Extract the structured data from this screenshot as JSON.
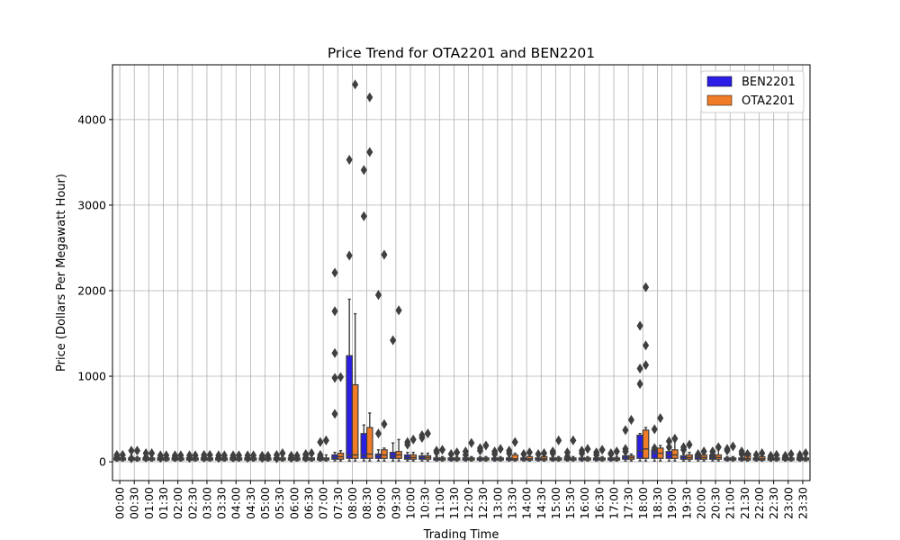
{
  "chart_data": {
    "type": "box",
    "title": "Price Trend for OTA2201 and BEN2201",
    "xlabel": "Trading Time",
    "ylabel": "Price (Dollars Per Megawatt Hour)",
    "ylim": [
      -220,
      4640
    ],
    "yticks": [
      0,
      1000,
      2000,
      3000,
      4000
    ],
    "grid": true,
    "legend_position": "top-right",
    "categories": [
      "00:00",
      "00:30",
      "01:00",
      "01:30",
      "02:00",
      "02:30",
      "03:00",
      "03:30",
      "04:00",
      "04:30",
      "05:00",
      "05:30",
      "06:00",
      "06:30",
      "07:00",
      "07:30",
      "08:00",
      "08:30",
      "09:00",
      "09:30",
      "10:00",
      "10:30",
      "11:00",
      "11:30",
      "12:00",
      "12:30",
      "13:00",
      "13:30",
      "14:00",
      "14:30",
      "15:00",
      "15:30",
      "16:00",
      "16:30",
      "17:00",
      "17:30",
      "18:00",
      "18:30",
      "19:00",
      "19:30",
      "20:00",
      "20:30",
      "21:00",
      "21:30",
      "22:00",
      "22:30",
      "23:00",
      "23:30"
    ],
    "series": [
      {
        "name": "BEN2201",
        "color": "#2a1ee6",
        "boxes": [
          [
            10,
            20,
            35,
            45,
            60
          ],
          [
            10,
            20,
            35,
            45,
            60
          ],
          [
            10,
            20,
            35,
            45,
            60
          ],
          [
            10,
            20,
            35,
            45,
            60
          ],
          [
            10,
            20,
            35,
            45,
            60
          ],
          [
            10,
            20,
            35,
            45,
            60
          ],
          [
            10,
            20,
            35,
            45,
            60
          ],
          [
            10,
            20,
            35,
            45,
            60
          ],
          [
            10,
            20,
            35,
            45,
            60
          ],
          [
            10,
            20,
            35,
            45,
            60
          ],
          [
            10,
            20,
            35,
            45,
            60
          ],
          [
            10,
            20,
            35,
            45,
            60
          ],
          [
            10,
            20,
            35,
            45,
            60
          ],
          [
            10,
            20,
            35,
            45,
            70
          ],
          [
            10,
            20,
            35,
            45,
            80
          ],
          [
            10,
            30,
            50,
            80,
            110
          ],
          [
            10,
            40,
            80,
            1240,
            1900
          ],
          [
            10,
            40,
            80,
            330,
            430
          ],
          [
            10,
            40,
            70,
            90,
            140
          ],
          [
            10,
            40,
            70,
            110,
            220
          ],
          [
            10,
            30,
            50,
            80,
            110
          ],
          [
            10,
            30,
            50,
            70,
            100
          ],
          [
            10,
            20,
            35,
            45,
            60
          ],
          [
            10,
            20,
            35,
            45,
            60
          ],
          [
            10,
            20,
            35,
            45,
            60
          ],
          [
            10,
            20,
            35,
            45,
            60
          ],
          [
            10,
            20,
            35,
            45,
            60
          ],
          [
            10,
            20,
            35,
            45,
            60
          ],
          [
            10,
            20,
            35,
            45,
            60
          ],
          [
            10,
            20,
            35,
            45,
            60
          ],
          [
            10,
            20,
            35,
            45,
            60
          ],
          [
            10,
            20,
            35,
            45,
            60
          ],
          [
            10,
            20,
            35,
            45,
            60
          ],
          [
            10,
            20,
            35,
            45,
            60
          ],
          [
            10,
            20,
            35,
            45,
            60
          ],
          [
            10,
            30,
            50,
            70,
            90
          ],
          [
            10,
            40,
            130,
            310,
            330
          ],
          [
            10,
            40,
            100,
            140,
            170
          ],
          [
            10,
            40,
            80,
            120,
            160
          ],
          [
            10,
            30,
            50,
            70,
            90
          ],
          [
            10,
            30,
            50,
            80,
            110
          ],
          [
            10,
            30,
            50,
            80,
            140
          ],
          [
            10,
            20,
            35,
            45,
            60
          ],
          [
            10,
            20,
            35,
            45,
            60
          ],
          [
            10,
            20,
            35,
            45,
            60
          ],
          [
            10,
            20,
            35,
            45,
            60
          ],
          [
            10,
            20,
            35,
            45,
            60
          ],
          [
            10,
            20,
            35,
            45,
            60
          ]
        ],
        "outliers": [
          [
            55,
            80
          ],
          [
            40,
            130
          ],
          [
            50,
            100
          ],
          [
            45,
            75
          ],
          [
            55,
            75
          ],
          [
            45,
            75
          ],
          [
            50,
            80
          ],
          [
            45,
            75
          ],
          [
            50,
            75
          ],
          [
            45,
            75
          ],
          [
            45,
            70
          ],
          [
            40,
            80
          ],
          [
            45,
            70
          ],
          [
            50,
            80,
            90
          ],
          [
            60,
            80,
            230
          ],
          [
            560,
            980,
            1760,
            1270,
            2210
          ],
          [
            3530,
            2410
          ],
          [
            3410,
            2870
          ],
          [
            1950,
            330
          ],
          [
            1420
          ],
          [
            200,
            230
          ],
          [
            280,
            310
          ],
          [
            110,
            130
          ],
          [
            90
          ],
          [
            120,
            80
          ],
          [
            160,
            130
          ],
          [
            120,
            90
          ],
          [
            130,
            100
          ],
          [
            90
          ],
          [
            90
          ],
          [
            100,
            120
          ],
          [
            110,
            60
          ],
          [
            100,
            130
          ],
          [
            110,
            80
          ],
          [
            90,
            100
          ],
          [
            370,
            120,
            150
          ],
          [
            910,
            1090,
            1590
          ],
          [
            380,
            160
          ],
          [
            170,
            240
          ],
          [
            140,
            170
          ],
          [
            90
          ],
          [
            120,
            80
          ],
          [
            130,
            150
          ],
          [
            90,
            120
          ],
          [
            80
          ],
          [
            60,
            70
          ],
          [
            70,
            60
          ],
          [
            60,
            80
          ]
        ]
      },
      {
        "name": "OTA2201",
        "color": "#f07c27",
        "boxes": [
          [
            10,
            20,
            35,
            45,
            60
          ],
          [
            10,
            20,
            35,
            45,
            60
          ],
          [
            10,
            20,
            35,
            45,
            60
          ],
          [
            10,
            20,
            35,
            45,
            60
          ],
          [
            10,
            20,
            35,
            45,
            60
          ],
          [
            10,
            20,
            35,
            45,
            60
          ],
          [
            10,
            20,
            35,
            45,
            60
          ],
          [
            10,
            20,
            35,
            45,
            60
          ],
          [
            10,
            20,
            35,
            45,
            60
          ],
          [
            10,
            20,
            35,
            45,
            60
          ],
          [
            10,
            20,
            35,
            45,
            60
          ],
          [
            10,
            20,
            35,
            45,
            60
          ],
          [
            10,
            20,
            35,
            45,
            60
          ],
          [
            10,
            20,
            35,
            45,
            70
          ],
          [
            10,
            20,
            35,
            45,
            80
          ],
          [
            10,
            30,
            60,
            100,
            130
          ],
          [
            10,
            40,
            80,
            900,
            1730
          ],
          [
            10,
            40,
            90,
            400,
            570
          ],
          [
            10,
            40,
            80,
            140,
            160
          ],
          [
            10,
            40,
            80,
            120,
            260
          ],
          [
            10,
            30,
            50,
            80,
            110
          ],
          [
            10,
            30,
            50,
            70,
            100
          ],
          [
            10,
            20,
            35,
            45,
            60
          ],
          [
            10,
            20,
            35,
            45,
            60
          ],
          [
            10,
            20,
            35,
            45,
            60
          ],
          [
            10,
            20,
            35,
            45,
            60
          ],
          [
            10,
            20,
            35,
            45,
            60
          ],
          [
            10,
            20,
            35,
            80,
            100
          ],
          [
            10,
            20,
            35,
            60,
            110
          ],
          [
            10,
            20,
            35,
            60,
            110
          ],
          [
            10,
            20,
            35,
            45,
            60
          ],
          [
            10,
            20,
            35,
            45,
            60
          ],
          [
            10,
            20,
            35,
            45,
            60
          ],
          [
            10,
            20,
            35,
            45,
            60
          ],
          [
            10,
            20,
            35,
            45,
            60
          ],
          [
            10,
            30,
            50,
            70,
            90
          ],
          [
            10,
            40,
            150,
            370,
            400
          ],
          [
            10,
            40,
            100,
            160,
            190
          ],
          [
            10,
            40,
            80,
            140,
            270
          ],
          [
            10,
            30,
            50,
            80,
            110
          ],
          [
            10,
            30,
            50,
            80,
            110
          ],
          [
            10,
            30,
            50,
            80,
            180
          ],
          [
            10,
            20,
            35,
            45,
            60
          ],
          [
            10,
            20,
            35,
            100,
            120
          ],
          [
            10,
            20,
            35,
            60,
            90
          ],
          [
            10,
            20,
            35,
            45,
            60
          ],
          [
            10,
            20,
            35,
            45,
            60
          ],
          [
            10,
            20,
            35,
            45,
            60
          ]
        ],
        "outliers": [
          [
            80
          ],
          [
            130
          ],
          [
            100
          ],
          [
            75
          ],
          [
            75
          ],
          [
            75
          ],
          [
            80
          ],
          [
            75
          ],
          [
            75
          ],
          [
            75
          ],
          [
            70
          ],
          [
            100
          ],
          [
            70
          ],
          [
            100
          ],
          [
            250
          ],
          [
            990
          ],
          [
            4410
          ],
          [
            4260,
            3620
          ],
          [
            2420,
            440
          ],
          [
            1770
          ],
          [
            260
          ],
          [
            330
          ],
          [
            140
          ],
          [
            110
          ],
          [
            220
          ],
          [
            190
          ],
          [
            150
          ],
          [
            230
          ],
          [
            110
          ],
          [
            100
          ],
          [
            250
          ],
          [
            250
          ],
          [
            150
          ],
          [
            140
          ],
          [
            120
          ],
          [
            490
          ],
          [
            2040,
            1360,
            1130
          ],
          [
            510
          ],
          [
            270
          ],
          [
            200
          ],
          [
            120
          ],
          [
            170
          ],
          [
            180
          ],
          [
            90
          ],
          [
            100
          ],
          [
            80
          ],
          [
            90
          ],
          [
            100
          ]
        ]
      }
    ]
  }
}
